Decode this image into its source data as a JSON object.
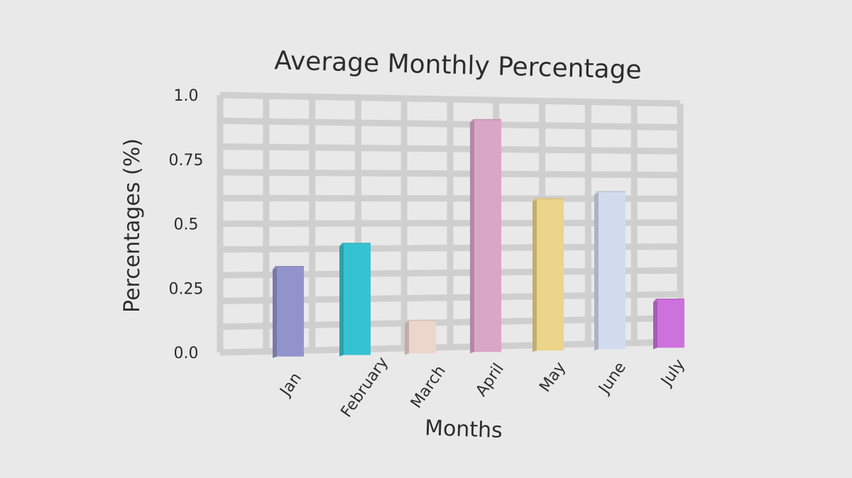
{
  "chart_data": {
    "type": "bar",
    "title": "Average Monthly Percentage",
    "xlabel": "Months",
    "ylabel": "Percentages (%)",
    "categories": [
      "Jan",
      "February",
      "March",
      "April",
      "May",
      "June",
      "July"
    ],
    "values": [
      0.35,
      0.44,
      0.13,
      0.94,
      0.62,
      0.65,
      0.2
    ],
    "colors": [
      "#9393cc",
      "#35c3d3",
      "#ecd6cc",
      "#d9a6c6",
      "#ecd48a",
      "#d2daed",
      "#cd72dc"
    ],
    "yticks": [
      "0.0",
      "0.25",
      "0.5",
      "0.75",
      "1.0"
    ],
    "ytick_values": [
      0,
      0.25,
      0.5,
      0.75,
      1.0
    ],
    "ylim": [
      0,
      1.0
    ],
    "grid": true,
    "legend": "none"
  }
}
